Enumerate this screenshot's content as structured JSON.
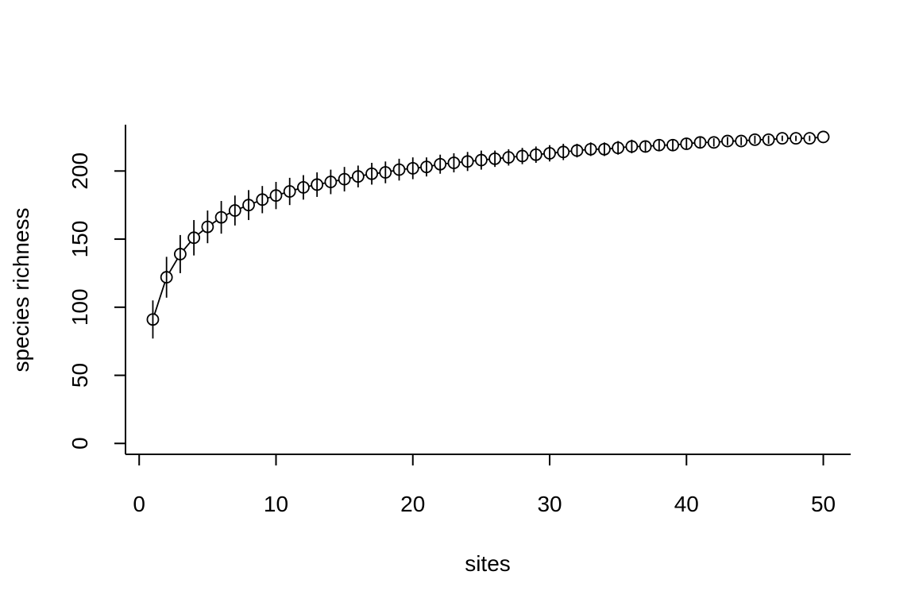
{
  "chart_data": {
    "type": "scatter",
    "title": "",
    "xlabel": "sites",
    "ylabel": "species richness",
    "xlim": [
      -1,
      52
    ],
    "ylim": [
      -8,
      234
    ],
    "x_ticks": [
      0,
      10,
      20,
      30,
      40,
      50
    ],
    "y_ticks": [
      0,
      50,
      100,
      150,
      200
    ],
    "grid": false,
    "legend": "none",
    "line_connected": true,
    "marker": "open-circle",
    "colors": {
      "line": "#000000",
      "background": "#ffffff"
    },
    "series": [
      {
        "x": [
          1,
          2,
          3,
          4,
          5,
          6,
          7,
          8,
          9,
          10,
          11,
          12,
          13,
          14,
          15,
          16,
          17,
          18,
          19,
          20,
          21,
          22,
          23,
          24,
          25,
          26,
          27,
          28,
          29,
          30,
          31,
          32,
          33,
          34,
          35,
          36,
          37,
          38,
          39,
          40,
          41,
          42,
          43,
          44,
          45,
          46,
          47,
          48,
          49,
          50
        ],
        "y": [
          91,
          122,
          139,
          151,
          159,
          166,
          171,
          175,
          179,
          182,
          185,
          188,
          190,
          192,
          194,
          196,
          198,
          199,
          201,
          202,
          203,
          205,
          206,
          207,
          208,
          209,
          210,
          211,
          212,
          213,
          214,
          215,
          216,
          216,
          217,
          218,
          218,
          219,
          219,
          220,
          221,
          221,
          222,
          222,
          223,
          223,
          224,
          224,
          224,
          225
        ],
        "err": [
          14,
          15,
          14,
          13,
          12,
          12,
          11,
          11,
          10,
          10,
          10,
          9,
          9,
          9,
          9,
          8,
          8,
          8,
          8,
          8,
          7,
          7,
          7,
          7,
          7,
          6,
          6,
          6,
          6,
          6,
          6,
          5,
          5,
          5,
          5,
          5,
          4,
          4,
          4,
          4,
          4,
          3,
          3,
          3,
          3,
          3,
          2,
          2,
          2,
          0
        ]
      }
    ]
  }
}
